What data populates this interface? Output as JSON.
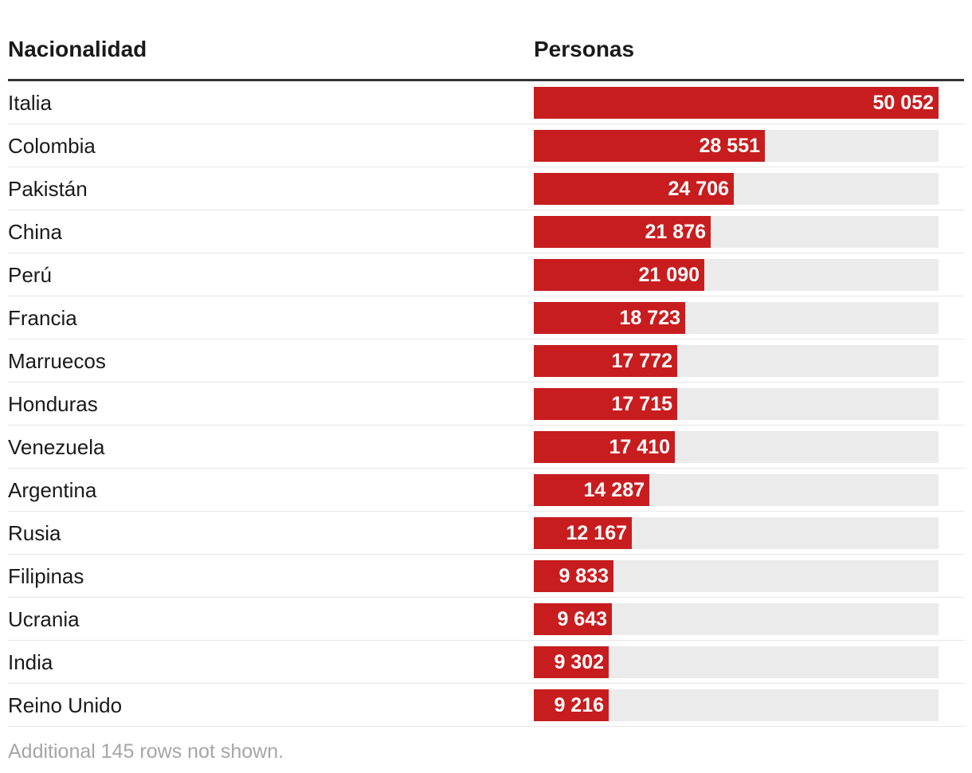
{
  "table": {
    "header_nationality": "Nacionalidad",
    "header_people": "Personas"
  },
  "chart_data": {
    "type": "bar",
    "orientation": "horizontal",
    "categories": [
      "Italia",
      "Colombia",
      "Pakistán",
      "China",
      "Perú",
      "Francia",
      "Marruecos",
      "Honduras",
      "Venezuela",
      "Argentina",
      "Rusia",
      "Filipinas",
      "Ucrania",
      "India",
      "Reino Unido"
    ],
    "values": [
      50052,
      28551,
      24706,
      21876,
      21090,
      18723,
      17772,
      17715,
      17410,
      14287,
      12167,
      9833,
      9643,
      9302,
      9216
    ],
    "value_labels": [
      "50 052",
      "28 551",
      "24 706",
      "21 876",
      "21 090",
      "18 723",
      "17 772",
      "17 715",
      "17 410",
      "14 287",
      "12 167",
      "9 833",
      "9 643",
      "9 302",
      "9 216"
    ],
    "xlim": [
      0,
      50052
    ],
    "bar_color": "#c81d1f",
    "track_color": "#ebebeb"
  },
  "footnote": "Additional 145 rows not shown."
}
